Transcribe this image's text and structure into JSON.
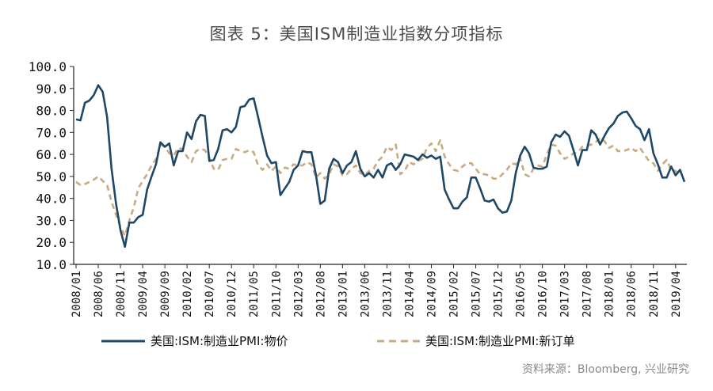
{
  "title": "图表 5：美国ISM制造业指数分项指标",
  "source": "资料来源：Bloomberg, 兴业研究",
  "colors": {
    "prices": "#1f4766",
    "new_orders": "#c8ab82",
    "axis": "#222222"
  },
  "chart_data": {
    "type": "line",
    "ylim": [
      10,
      100
    ],
    "yticks": [
      "100.0",
      "90.0",
      "80.0",
      "70.0",
      "60.0",
      "50.0",
      "40.0",
      "30.0",
      "20.0",
      "10.0"
    ],
    "ytick_values": [
      100,
      90,
      80,
      70,
      60,
      50,
      40,
      30,
      20,
      10
    ],
    "xtick_labels": [
      "2008/01",
      "2008/06",
      "2008/11",
      "2009/04",
      "2009/09",
      "2010/02",
      "2010/07",
      "2010/12",
      "2011/05",
      "2011/10",
      "2012/03",
      "2012/08",
      "2013/01",
      "2013/06",
      "2013/11",
      "2014/04",
      "2014/09",
      "2015/02",
      "2015/07",
      "2015/12",
      "2016/05",
      "2016/10",
      "2017/03",
      "2017/08",
      "2018/01",
      "2018/06",
      "2018/11",
      "2019/04"
    ],
    "legend_position": "bottom",
    "series": [
      {
        "name": "美国:ISM:制造业PMI:物价",
        "style": "solid",
        "values": [
          76.0,
          75.5,
          83.5,
          84.5,
          87.0,
          91.5,
          88.5,
          77.0,
          53.5,
          37.5,
          25.5,
          18.0,
          29.0,
          29.0,
          31.5,
          32.5,
          44.0,
          50.0,
          55.5,
          65.5,
          63.5,
          65.0,
          55.0,
          61.5,
          61.5,
          70.0,
          67.0,
          75.0,
          78.0,
          77.5,
          57.0,
          57.5,
          62.5,
          71.0,
          71.5,
          70.0,
          72.5,
          81.5,
          82.0,
          85.0,
          85.5,
          77.0,
          68.0,
          59.5,
          56.0,
          56.5,
          41.5,
          44.5,
          47.5,
          53.0,
          55.0,
          61.5,
          61.0,
          61.0,
          51.0,
          37.5,
          39.0,
          53.5,
          58.0,
          56.5,
          51.5,
          55.0,
          56.5,
          61.5,
          53.5,
          50.0,
          51.5,
          49.5,
          53.0,
          49.5,
          55.0,
          56.0,
          53.0,
          55.5,
          60.0,
          59.5,
          59.0,
          57.5,
          60.0,
          58.5,
          59.5,
          58.0,
          59.0,
          44.0,
          39.5,
          35.5,
          35.5,
          38.5,
          40.5,
          49.5,
          49.5,
          44.5,
          39.0,
          38.5,
          39.5,
          35.5,
          33.5,
          34.0,
          39.0,
          51.5,
          59.5,
          63.5,
          60.5,
          54.0,
          53.5,
          53.5,
          54.5,
          65.5,
          69.0,
          68.0,
          70.5,
          68.5,
          62.0,
          55.0,
          62.0,
          62.0,
          71.0,
          69.0,
          64.5,
          68.5,
          72.0,
          74.0,
          77.5,
          79.0,
          79.5,
          76.5,
          73.0,
          71.5,
          66.5,
          71.5,
          60.5,
          55.5,
          49.5,
          49.5,
          54.5,
          50.5,
          53.0,
          47.5
        ]
      },
      {
        "name": "美国:ISM:制造业PMI:新订单",
        "style": "dashed",
        "values": [
          47.5,
          46.0,
          46.5,
          47.5,
          48.5,
          50.0,
          48.0,
          46.0,
          38.5,
          32.5,
          27.0,
          23.0,
          30.0,
          36.0,
          44.5,
          48.0,
          51.0,
          55.0,
          58.0,
          64.5,
          63.5,
          60.5,
          59.5,
          63.0,
          62.5,
          59.0,
          56.5,
          61.5,
          62.5,
          62.0,
          58.5,
          53.5,
          53.0,
          57.5,
          58.0,
          58.0,
          62.5,
          61.5,
          61.0,
          62.0,
          61.0,
          55.0,
          53.0,
          55.5,
          52.5,
          54.5,
          51.5,
          54.0,
          53.5,
          55.5,
          55.0,
          55.0,
          56.5,
          55.5,
          49.5,
          51.5,
          49.0,
          51.0,
          55.5,
          54.5,
          50.5,
          51.0,
          53.5,
          55.0,
          51.5,
          50.5,
          52.5,
          53.5,
          57.0,
          59.0,
          63.5,
          62.0,
          64.5,
          51.0,
          52.5,
          56.5,
          55.5,
          57.0,
          58.0,
          63.0,
          65.0,
          61.5,
          66.5,
          59.0,
          55.5,
          53.0,
          52.5,
          54.5,
          56.0,
          56.0,
          53.5,
          51.0,
          51.0,
          50.5,
          49.0,
          49.0,
          51.0,
          53.0,
          56.0,
          55.5,
          58.5,
          51.0,
          50.0,
          53.5,
          55.0,
          54.5,
          60.0,
          64.5,
          64.0,
          60.5,
          58.0,
          59.0,
          60.5,
          61.0,
          63.5,
          64.0,
          64.5,
          65.5,
          67.5,
          66.0,
          63.0,
          64.0,
          61.5,
          61.5,
          62.0,
          63.0,
          61.5,
          63.0,
          60.0,
          57.0,
          56.0,
          52.5,
          55.5,
          57.5,
          53.0,
          52.5,
          51.0
        ]
      }
    ]
  }
}
